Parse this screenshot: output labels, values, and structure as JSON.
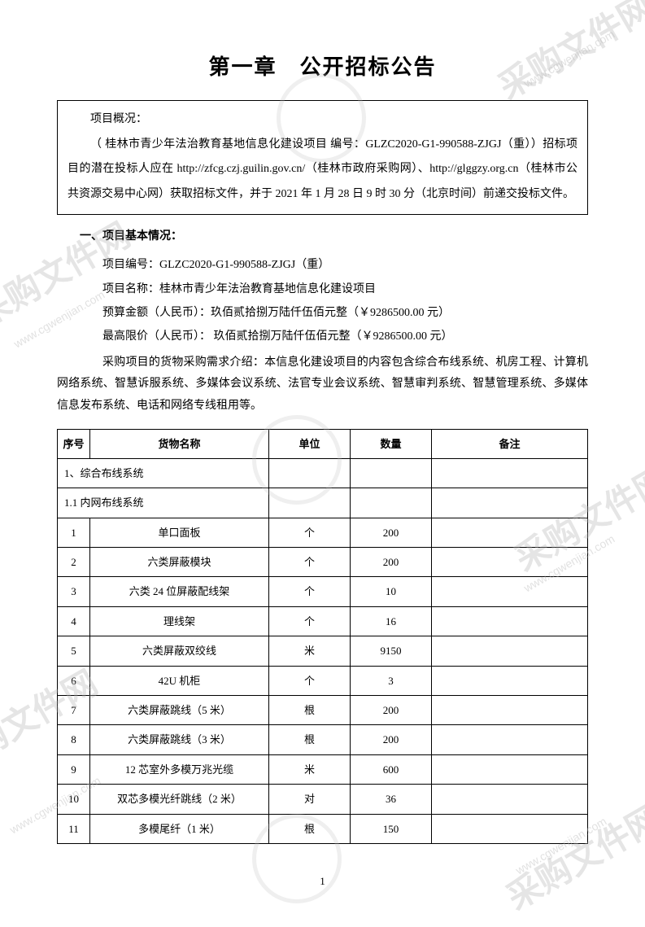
{
  "watermark_text": "采购文件网",
  "watermark_url": "www.cgwenjian.com",
  "title": "第一章　公开招标公告",
  "overview": {
    "label": "项目概况：",
    "text": "（ 桂林市青少年法治教育基地信息化建设项目 编号：GLZC2020-G1-990588-ZJGJ（重））招标项目的潜在投标人应在 http://zfcg.czj.guilin.gov.cn/（桂林市政府采购网）、http://glggzy.org.cn（桂林市公共资源交易中心网）获取招标文件，并于 2021 年 1 月 28 日 9 时 30 分（北京时间）前递交投标文件。"
  },
  "section1": {
    "header": "一、项目基本情况：",
    "project_code_label": "项目编号：",
    "project_code": "GLZC2020-G1-990588-ZJGJ（重）",
    "project_name_label": "项目名称：",
    "project_name": "桂林市青少年法治教育基地信息化建设项目",
    "budget_label": "预算金额（人民币）：",
    "budget": "玖佰贰拾捌万陆仟伍佰元整（￥9286500.00 元）",
    "max_price_label": "最高限价（人民币）：",
    "max_price": " 玖佰贰拾捌万陆仟伍佰元整（￥9286500.00 元）",
    "desc": "采购项目的货物采购需求介绍：本信息化建设项目的内容包含综合布线系统、机房工程、计算机网络系统、智慧诉服系统、多媒体会议系统、法官专业会议系统、智慧审判系统、智慧管理系统、多媒体信息发布系统、电话和网络专线租用等。"
  },
  "table": {
    "headers": {
      "seq": "序号",
      "name": "货物名称",
      "unit": "单位",
      "qty": "数量",
      "remark": "备注"
    },
    "section_rows": [
      "1、综合布线系统",
      "1.1 内网布线系统"
    ],
    "rows": [
      {
        "seq": "1",
        "name": "单口面板",
        "unit": "个",
        "qty": "200",
        "remark": ""
      },
      {
        "seq": "2",
        "name": "六类屏蔽模块",
        "unit": "个",
        "qty": "200",
        "remark": ""
      },
      {
        "seq": "3",
        "name": "六类 24 位屏蔽配线架",
        "unit": "个",
        "qty": "10",
        "remark": ""
      },
      {
        "seq": "4",
        "name": "理线架",
        "unit": "个",
        "qty": "16",
        "remark": ""
      },
      {
        "seq": "5",
        "name": "六类屏蔽双绞线",
        "unit": "米",
        "qty": "9150",
        "remark": ""
      },
      {
        "seq": "6",
        "name": "42U 机柜",
        "unit": "个",
        "qty": "3",
        "remark": ""
      },
      {
        "seq": "7",
        "name": "六类屏蔽跳线（5 米）",
        "unit": "根",
        "qty": "200",
        "remark": ""
      },
      {
        "seq": "8",
        "name": "六类屏蔽跳线（3 米）",
        "unit": "根",
        "qty": "200",
        "remark": ""
      },
      {
        "seq": "9",
        "name": "12 芯室外多模万兆光缆",
        "unit": "米",
        "qty": "600",
        "remark": ""
      },
      {
        "seq": "10",
        "name": "双芯多模光纤跳线（2 米）",
        "unit": "对",
        "qty": "36",
        "remark": ""
      },
      {
        "seq": "11",
        "name": "多模尾纤（1 米）",
        "unit": "根",
        "qty": "150",
        "remark": ""
      }
    ]
  },
  "page_number": "1"
}
